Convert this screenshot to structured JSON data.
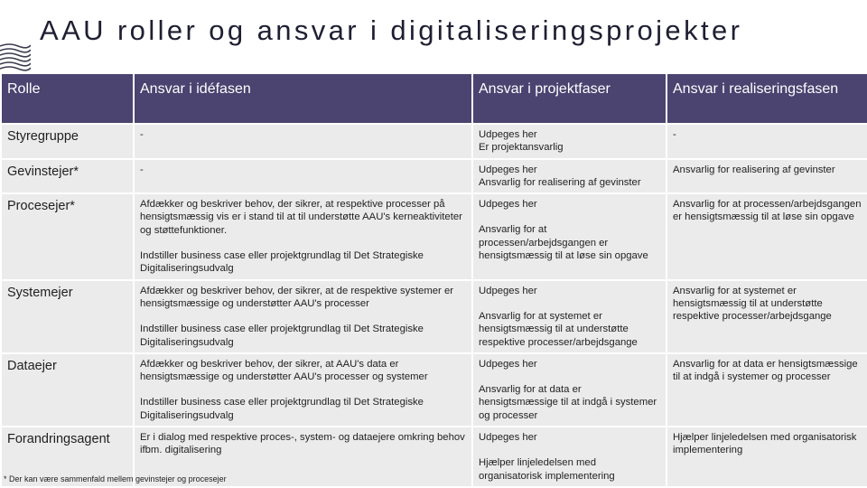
{
  "title": "AAU roller og ansvar i digitaliseringsprojekter",
  "logo_icon": "aau-waves-icon",
  "headers": [
    "Rolle",
    "Ansvar i idéfasen",
    "Ansvar i projektfaser",
    "Ansvar i realiseringsfasen"
  ],
  "rows": [
    {
      "role": "Styregruppe",
      "idea": [
        "-"
      ],
      "project": [
        "Udpeges her\nEr projektansvarlig"
      ],
      "realisation": [
        "-"
      ]
    },
    {
      "role": "Gevinstejer*",
      "idea": [
        "-"
      ],
      "project": [
        "Udpeges her\nAnsvarlig for realisering af gevinster"
      ],
      "realisation": [
        "Ansvarlig for realisering af gevinster"
      ]
    },
    {
      "role": "Procesejer*",
      "idea": [
        "Afdækker og beskriver behov, der sikrer, at respektive processer på hensigtsmæssig vis er i stand til at til understøtte AAU's kerneaktiviteter og støttefunktioner.",
        "Indstiller business case eller projektgrundlag til Det Strategiske Digitaliseringsudvalg"
      ],
      "project": [
        "Udpeges her",
        "Ansvarlig for at processen/arbejdsgangen er hensigtsmæssig til at løse sin opgave"
      ],
      "realisation": [
        "Ansvarlig for at processen/arbejdsgangen er hensigtsmæssig til at løse sin opgave"
      ]
    },
    {
      "role": "Systemejer",
      "idea": [
        "Afdækker og beskriver behov, der sikrer, at de respektive systemer er hensigtsmæssige og understøtter AAU's processer",
        "Indstiller business case eller projektgrundlag til Det Strategiske Digitaliseringsudvalg"
      ],
      "project": [
        "Udpeges her",
        "Ansvarlig for at systemet er hensigtsmæssig til at understøtte respektive processer/arbejdsgange"
      ],
      "realisation": [
        "Ansvarlig for at systemet er hensigtsmæssig til at understøtte respektive processer/arbejdsgange"
      ]
    },
    {
      "role": "Dataejer",
      "idea": [
        "Afdækker og beskriver behov, der sikrer, at AAU's data er hensigtsmæssige og understøtter AAU's processer og systemer",
        "Indstiller business case eller projektgrundlag til Det Strategiske Digitaliseringsudvalg"
      ],
      "project": [
        "Udpeges her",
        "Ansvarlig for at data er hensigtsmæssige til at indgå i systemer og processer"
      ],
      "realisation": [
        "Ansvarlig for at data er hensigtsmæssige til at indgå i systemer og processer"
      ]
    },
    {
      "role": "Forandringsagent",
      "idea": [
        "Er i dialog med respektive proces-, system- og dataejere omkring behov ifbm. digitalisering"
      ],
      "project": [
        "Udpeges her",
        "Hjælper linjeledelsen med organisatorisk implementering"
      ],
      "realisation": [
        "Hjælper linjeledelsen med organisatorisk implementering"
      ]
    }
  ],
  "footnote": "* Der kan være sammenfald mellem gevinstejer og procesejer"
}
